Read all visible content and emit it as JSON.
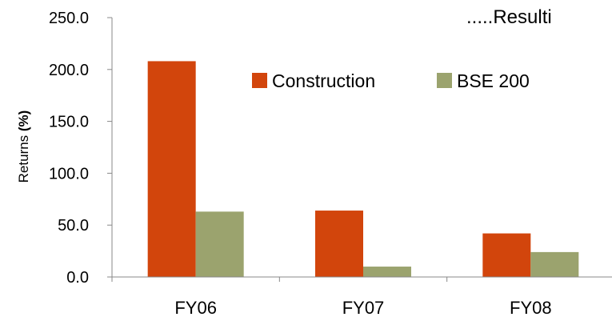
{
  "overlay_text": ".....Resulti",
  "chart_data": {
    "type": "bar",
    "categories": [
      "FY06",
      "FY07",
      "FY08"
    ],
    "series": [
      {
        "name": "Construction",
        "values": [
          208,
          64,
          42
        ]
      },
      {
        "name": "BSE 200",
        "values": [
          63,
          10,
          24
        ]
      }
    ],
    "ylabel_text": "Returns ",
    "ylabel_unit": "(%)",
    "ylim": [
      0,
      250
    ],
    "yticks": [
      "0.0",
      "50.0",
      "100.0",
      "150.0",
      "200.0",
      "250.0"
    ],
    "grid": false,
    "legend_position": "top-right",
    "colors": [
      "#D2450C",
      "#9BA36E"
    ]
  }
}
